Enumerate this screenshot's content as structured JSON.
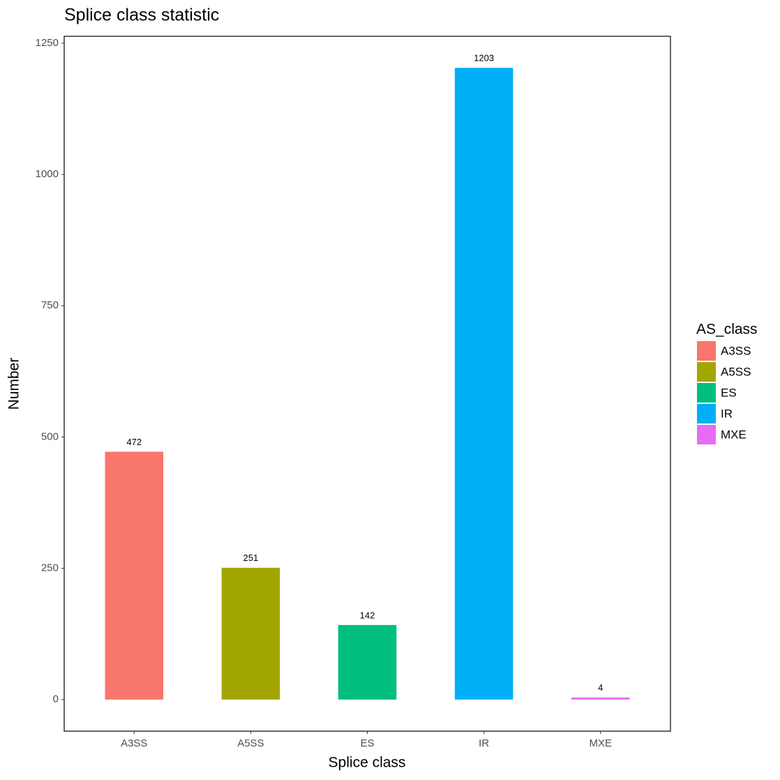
{
  "chart_data": {
    "type": "bar",
    "title": "Splice class statistic",
    "x_label": "Splice class",
    "y_label": "Number",
    "categories": [
      "A3SS",
      "A5SS",
      "ES",
      "IR",
      "MXE"
    ],
    "values": [
      472,
      251,
      142,
      1203,
      4
    ],
    "colors": [
      "#F8766D",
      "#A3A500",
      "#00BF7D",
      "#00B0F6",
      "#E76BF3"
    ],
    "ylim": [
      -60.15,
      1263.15
    ],
    "yticks": [
      0,
      250,
      500,
      750,
      1000,
      1250
    ],
    "grid": false,
    "legend_title": "AS_class",
    "legend_position": "right"
  }
}
